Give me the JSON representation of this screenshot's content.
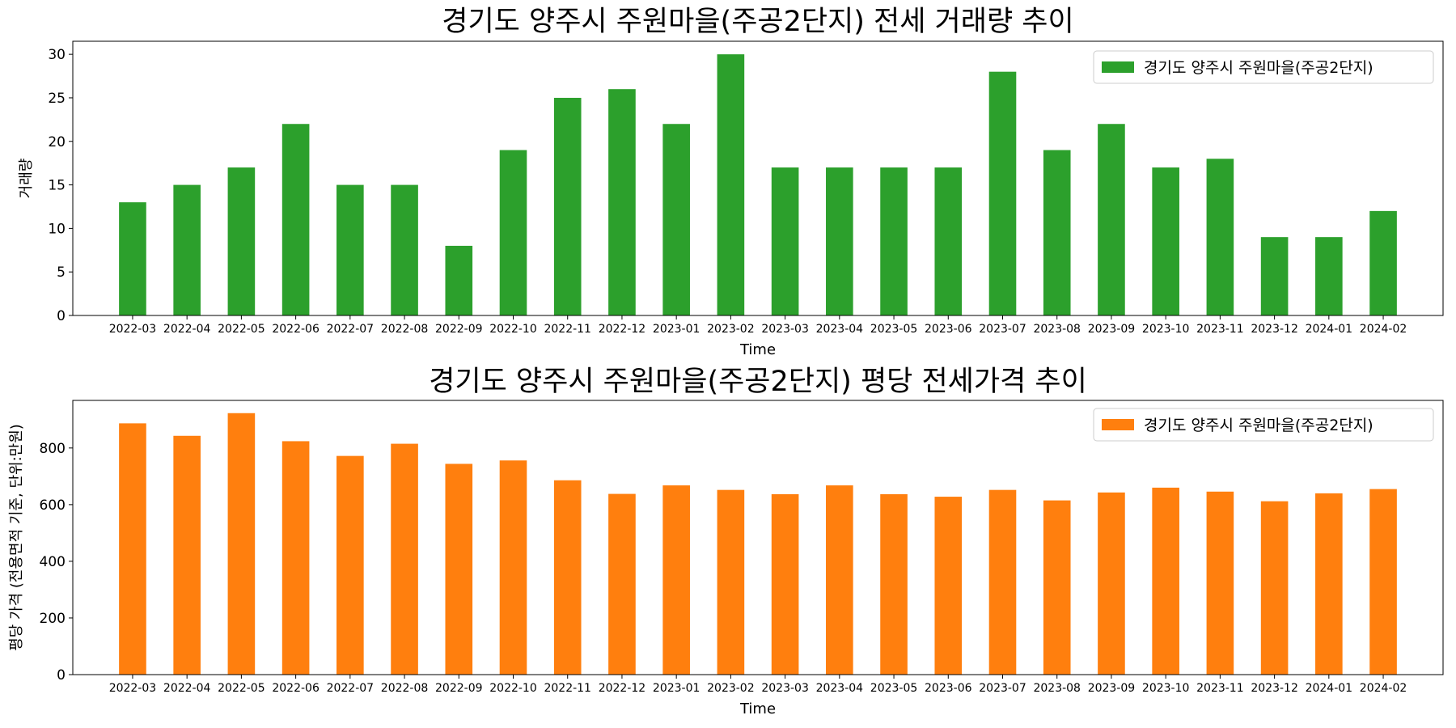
{
  "chart_data": [
    {
      "type": "bar",
      "title": "경기도 양주시 주원마을(주공2단지) 전세 거래량 추이",
      "xlabel": "Time",
      "ylabel": "거래량",
      "categories": [
        "2022-03",
        "2022-04",
        "2022-05",
        "2022-06",
        "2022-07",
        "2022-08",
        "2022-09",
        "2022-10",
        "2022-11",
        "2022-12",
        "2023-01",
        "2023-02",
        "2023-03",
        "2023-04",
        "2023-05",
        "2023-06",
        "2023-07",
        "2023-08",
        "2023-09",
        "2023-10",
        "2023-11",
        "2023-12",
        "2024-01",
        "2024-02"
      ],
      "series": [
        {
          "name": "경기도 양주시 주원마을(주공2단지)",
          "color": "#2ca02c",
          "values": [
            13,
            15,
            17,
            22,
            15,
            15,
            8,
            19,
            25,
            26,
            22,
            30,
            17,
            17,
            17,
            17,
            28,
            19,
            22,
            17,
            18,
            9,
            9,
            12
          ]
        }
      ],
      "ylim": [
        0,
        31.5
      ],
      "yticks": [
        0,
        5,
        10,
        15,
        20,
        25,
        30
      ],
      "legend": "top-right",
      "grid": false
    },
    {
      "type": "bar",
      "title": "경기도 양주시 주원마을(주공2단지) 평당 전세가격 추이",
      "xlabel": "Time",
      "ylabel": "평당 가격 (전용면적 기준, 단위:만원)",
      "categories": [
        "2022-03",
        "2022-04",
        "2022-05",
        "2022-06",
        "2022-07",
        "2022-08",
        "2022-09",
        "2022-10",
        "2022-11",
        "2022-12",
        "2023-01",
        "2023-02",
        "2023-03",
        "2023-04",
        "2023-05",
        "2023-06",
        "2023-07",
        "2023-08",
        "2023-09",
        "2023-10",
        "2023-11",
        "2023-12",
        "2024-01",
        "2024-02"
      ],
      "series": [
        {
          "name": "경기도 양주시 주원마을(주공2단지)",
          "color": "#ff7f0e",
          "values": [
            887,
            843,
            923,
            824,
            772,
            815,
            744,
            756,
            686,
            638,
            668,
            652,
            637,
            668,
            637,
            628,
            652,
            615,
            643,
            660,
            646,
            612,
            640,
            655
          ]
        }
      ],
      "ylim": [
        0,
        968
      ],
      "yticks": [
        0,
        200,
        400,
        600,
        800
      ],
      "legend": "top-right",
      "grid": false
    }
  ]
}
